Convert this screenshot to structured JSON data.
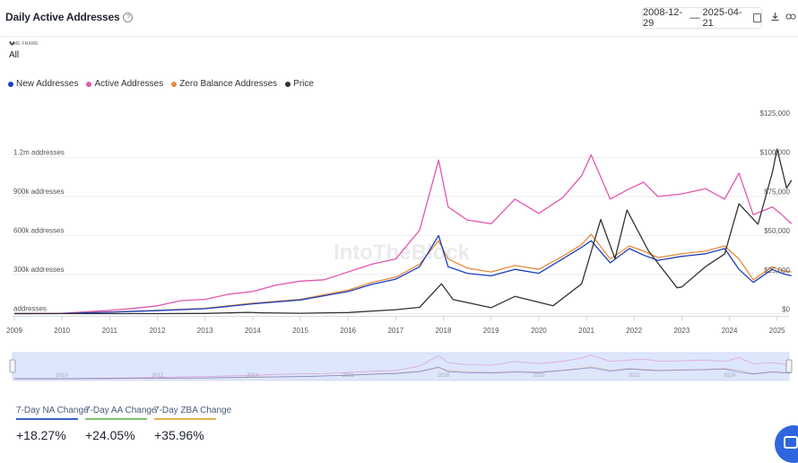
{
  "header": {
    "title": "Daily Active Addresses",
    "help_glyph": "?",
    "date_start": "2008-12-29",
    "date_sep": "—",
    "date_end": "2025-04-21"
  },
  "timeframe": {
    "label": "TIME FRAME",
    "value": "All"
  },
  "legend": [
    {
      "label": "New Addresses",
      "color": "#1a3fbf"
    },
    {
      "label": "Active Addresses",
      "color": "#e056b0"
    },
    {
      "label": "Zero Balance Addresses",
      "color": "#e98a3c"
    },
    {
      "label": "Price",
      "color": "#333333"
    }
  ],
  "watermark": "IntoTheBlock",
  "chart_data": {
    "type": "line",
    "left_axis": {
      "ticks": [
        "addresses",
        "300k addresses",
        "600k addresses",
        "900k addresses",
        "1.2m addresses"
      ],
      "values": [
        0,
        300000,
        600000,
        900000,
        1200000
      ]
    },
    "right_axis": {
      "ticks": [
        "$0",
        "$25,000",
        "$50,000",
        "$75,000",
        "$100,000",
        "$125,000"
      ],
      "values": [
        0,
        25000,
        50000,
        75000,
        100000,
        125000
      ]
    },
    "x_ticks": [
      "2009",
      "2010",
      "2011",
      "2012",
      "2013",
      "2014",
      "2015",
      "2016",
      "2017",
      "2018",
      "2019",
      "2020",
      "2021",
      "2022",
      "2023",
      "2024",
      "2025"
    ],
    "nav_ticks": [
      "2010",
      "2012",
      "2014",
      "2016",
      "2018",
      "2020",
      "2022",
      "2024"
    ],
    "series": [
      {
        "name": "Active Addresses",
        "color": "#e056b0",
        "axis": "left",
        "x": [
          2009,
          2010,
          2011,
          2011.5,
          2012,
          2012.5,
          2013,
          2013.5,
          2014,
          2014.5,
          2015,
          2015.5,
          2016,
          2016.5,
          2017,
          2017.5,
          2017.9,
          2018.1,
          2018.5,
          2019,
          2019.5,
          2020,
          2020.5,
          2020.9,
          2021.1,
          2021.5,
          2021.9,
          2022.2,
          2022.5,
          2023,
          2023.5,
          2023.9,
          2024.2,
          2024.5,
          2024.9,
          2025.1,
          2025.3
        ],
        "y": [
          0,
          2000,
          25000,
          40000,
          60000,
          100000,
          110000,
          150000,
          170000,
          220000,
          250000,
          260000,
          320000,
          380000,
          420000,
          640000,
          1180000,
          820000,
          720000,
          690000,
          880000,
          770000,
          890000,
          1060000,
          1220000,
          880000,
          960000,
          1010000,
          900000,
          920000,
          960000,
          880000,
          1080000,
          760000,
          820000,
          760000,
          690000
        ]
      },
      {
        "name": "Zero Balance Addresses",
        "color": "#e98a3c",
        "axis": "left",
        "x": [
          2009,
          2010,
          2011,
          2012,
          2013,
          2013.5,
          2014,
          2015,
          2016,
          2016.5,
          2017,
          2017.5,
          2017.9,
          2018.1,
          2018.5,
          2019,
          2019.5,
          2020,
          2020.5,
          2020.9,
          2021.1,
          2021.5,
          2021.9,
          2022.2,
          2022.5,
          2023,
          2023.5,
          2023.9,
          2024.2,
          2024.5,
          2024.9,
          2025.1,
          2025.3
        ],
        "y": [
          0,
          1000,
          12000,
          25000,
          40000,
          60000,
          80000,
          110000,
          180000,
          240000,
          280000,
          380000,
          560000,
          420000,
          350000,
          320000,
          370000,
          340000,
          440000,
          530000,
          610000,
          420000,
          520000,
          480000,
          430000,
          460000,
          480000,
          520000,
          420000,
          260000,
          360000,
          330000,
          320000
        ]
      },
      {
        "name": "New Addresses",
        "color": "#1a3fbf",
        "axis": "left",
        "x": [
          2009,
          2010,
          2011,
          2012,
          2013,
          2013.5,
          2014,
          2015,
          2016,
          2016.5,
          2017,
          2017.5,
          2017.9,
          2018.1,
          2018.5,
          2019,
          2019.5,
          2020,
          2020.5,
          2020.9,
          2021.1,
          2021.5,
          2021.9,
          2022.2,
          2022.5,
          2023,
          2023.5,
          2023.9,
          2024.2,
          2024.5,
          2024.9,
          2025.1,
          2025.3
        ],
        "y": [
          0,
          1000,
          11000,
          23000,
          38000,
          56000,
          75000,
          105000,
          170000,
          225000,
          265000,
          360000,
          600000,
          360000,
          310000,
          290000,
          340000,
          310000,
          420000,
          510000,
          560000,
          390000,
          500000,
          450000,
          410000,
          440000,
          460000,
          500000,
          340000,
          240000,
          340000,
          310000,
          290000
        ]
      },
      {
        "name": "Price",
        "color": "#333333",
        "axis": "right",
        "x": [
          2009,
          2010,
          2011,
          2012,
          2013,
          2013.9,
          2014.2,
          2015,
          2016,
          2017,
          2017.5,
          2017.96,
          2018.2,
          2019,
          2019.5,
          2020,
          2020.3,
          2020.9,
          2021.3,
          2021.6,
          2021.85,
          2022.3,
          2022.9,
          2023,
          2023.5,
          2023.9,
          2024.2,
          2024.6,
          2024.9,
          2025.0,
          2025.2,
          2025.3
        ],
        "y": [
          0,
          0,
          5,
          10,
          100,
          800,
          500,
          250,
          700,
          2500,
          4000,
          19000,
          9000,
          3800,
          11000,
          7200,
          5000,
          19000,
          60000,
          35000,
          66000,
          40000,
          16500,
          17000,
          30000,
          38000,
          70000,
          57000,
          90000,
          105000,
          80000,
          85000
        ]
      }
    ]
  },
  "stats": [
    {
      "label": "7-Day NA Change",
      "value": "+18.27%",
      "color": "#3a63c9"
    },
    {
      "label": "7-Day AA Change",
      "value": "+24.05%",
      "color": "#7cc26a"
    },
    {
      "label": "7-Day ZBA Change",
      "value": "+35.96%",
      "color": "#e3b14a"
    }
  ]
}
